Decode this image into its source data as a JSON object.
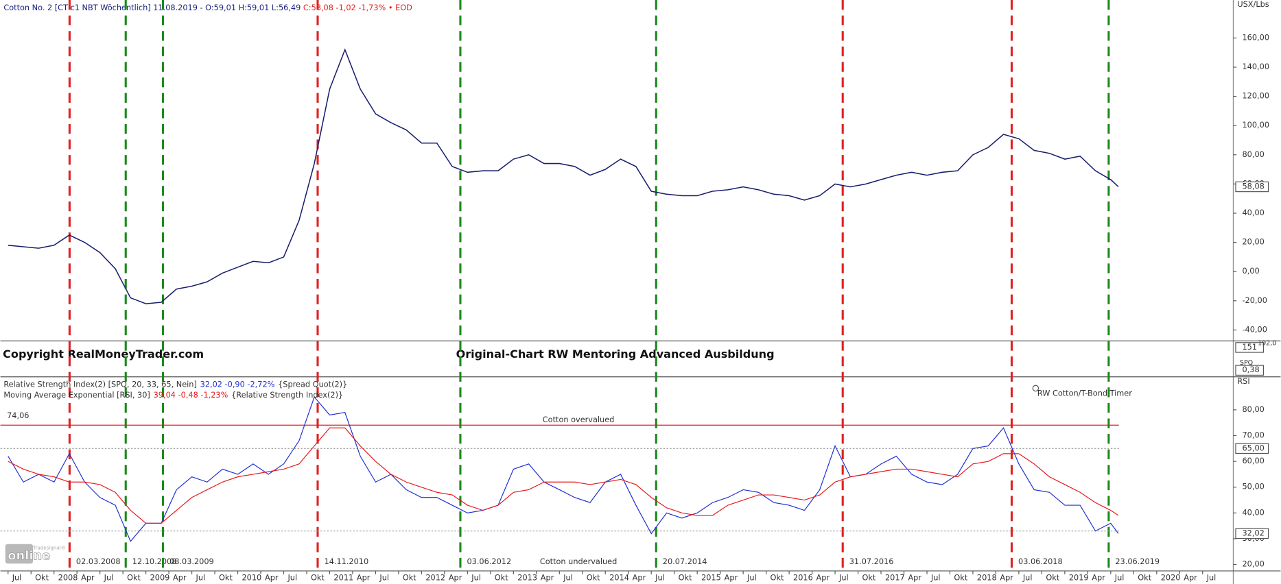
{
  "header": {
    "title": "Cotton No. 2 [CT c1 NBT Wöchentlich] 11.08.2019 -",
    "ohl": "O:59,01 H:59,01 L:56,49",
    "close": "C:58,08 -1,02 -1,73% • EOD"
  },
  "copyright": "Copyright RealMoneyTrader.com",
  "caption": "Original-Chart RW Mentoring Advanced Ausbildung",
  "side_labels": {
    "vol": "151",
    "vol2": "192,0",
    "spq": "SPQ",
    "spq_value": "0,38"
  },
  "logo": {
    "brand": "Tradesignal®",
    "name": "online"
  },
  "markers": [
    {
      "date": "02.03.2008",
      "color": "#e02020"
    },
    {
      "date": "12.10.2008",
      "color": "#1b8a1b"
    },
    {
      "date": "08.03.2009",
      "color": "#1b8a1b"
    },
    {
      "date": "14.11.2010",
      "color": "#e02020"
    },
    {
      "date": "03.06.2012",
      "color": "#1b8a1b"
    },
    {
      "date": "20.07.2014",
      "color": "#1b8a1b"
    },
    {
      "date": "31.07.2016",
      "color": "#e02020"
    },
    {
      "date": "03.06.2018",
      "color": "#e02020"
    },
    {
      "date": "23.06.2019",
      "color": "#1b8a1b"
    }
  ],
  "xlim": [
    "2007-06",
    "2020-11"
  ],
  "xticks": [
    {
      "value": "2007-07",
      "label": "Jul"
    },
    {
      "value": "2007-10",
      "label": "Okt"
    },
    {
      "value": "2008-01",
      "label": "2008"
    },
    {
      "value": "2008-04",
      "label": "Apr"
    },
    {
      "value": "2008-07",
      "label": "Jul"
    },
    {
      "value": "2008-10",
      "label": "Okt"
    },
    {
      "value": "2009-01",
      "label": "2009"
    },
    {
      "value": "2009-04",
      "label": "Apr"
    },
    {
      "value": "2009-07",
      "label": "Jul"
    },
    {
      "value": "2009-10",
      "label": "Okt"
    },
    {
      "value": "2010-01",
      "label": "2010"
    },
    {
      "value": "2010-04",
      "label": "Apr"
    },
    {
      "value": "2010-07",
      "label": "Jul"
    },
    {
      "value": "2010-10",
      "label": "Okt"
    },
    {
      "value": "2011-01",
      "label": "2011"
    },
    {
      "value": "2011-04",
      "label": "Apr"
    },
    {
      "value": "2011-07",
      "label": "Jul"
    },
    {
      "value": "2011-10",
      "label": "Okt"
    },
    {
      "value": "2012-01",
      "label": "2012"
    },
    {
      "value": "2012-04",
      "label": "Apr"
    },
    {
      "value": "2012-07",
      "label": "Jul"
    },
    {
      "value": "2012-10",
      "label": "Okt"
    },
    {
      "value": "2013-01",
      "label": "2013"
    },
    {
      "value": "2013-04",
      "label": "Apr"
    },
    {
      "value": "2013-07",
      "label": "Jul"
    },
    {
      "value": "2013-10",
      "label": "Okt"
    },
    {
      "value": "2014-01",
      "label": "2014"
    },
    {
      "value": "2014-04",
      "label": "Apr"
    },
    {
      "value": "2014-07",
      "label": "Jul"
    },
    {
      "value": "2014-10",
      "label": "Okt"
    },
    {
      "value": "2015-01",
      "label": "2015"
    },
    {
      "value": "2015-04",
      "label": "Apr"
    },
    {
      "value": "2015-07",
      "label": "Jul"
    },
    {
      "value": "2015-10",
      "label": "Okt"
    },
    {
      "value": "2016-01",
      "label": "2016"
    },
    {
      "value": "2016-04",
      "label": "Apr"
    },
    {
      "value": "2016-07",
      "label": "Jul"
    },
    {
      "value": "2016-10",
      "label": "Okt"
    },
    {
      "value": "2017-01",
      "label": "2017"
    },
    {
      "value": "2017-04",
      "label": "Apr"
    },
    {
      "value": "2017-07",
      "label": "Jul"
    },
    {
      "value": "2017-10",
      "label": "Okt"
    },
    {
      "value": "2018-01",
      "label": "2018"
    },
    {
      "value": "2018-04",
      "label": "Apr"
    },
    {
      "value": "2018-07",
      "label": "Jul"
    },
    {
      "value": "2018-10",
      "label": "Okt"
    },
    {
      "value": "2019-01",
      "label": "2019"
    },
    {
      "value": "2019-04",
      "label": "Apr"
    },
    {
      "value": "2019-07",
      "label": "Jul"
    },
    {
      "value": "2019-10",
      "label": "Okt"
    },
    {
      "value": "2020-01",
      "label": "2020"
    },
    {
      "value": "2020-04",
      "label": "Apr"
    },
    {
      "value": "2020-07",
      "label": "Jul"
    }
  ],
  "chart_data": [
    {
      "type": "line",
      "axis_label": "USX/Lbs",
      "color": "#1a1f6e",
      "x": [
        "2007-07",
        "2007-09",
        "2007-11",
        "2008-01",
        "2008-03",
        "2008-05",
        "2008-07",
        "2008-09",
        "2008-11",
        "2009-01",
        "2009-03",
        "2009-05",
        "2009-07",
        "2009-09",
        "2009-11",
        "2010-01",
        "2010-03",
        "2010-05",
        "2010-07",
        "2010-09",
        "2010-11",
        "2011-01",
        "2011-03",
        "2011-05",
        "2011-07",
        "2011-09",
        "2011-11",
        "2012-01",
        "2012-03",
        "2012-05",
        "2012-07",
        "2012-09",
        "2012-11",
        "2013-01",
        "2013-03",
        "2013-05",
        "2013-07",
        "2013-09",
        "2013-11",
        "2014-01",
        "2014-03",
        "2014-05",
        "2014-07",
        "2014-09",
        "2014-11",
        "2015-01",
        "2015-03",
        "2015-05",
        "2015-07",
        "2015-09",
        "2015-11",
        "2016-01",
        "2016-03",
        "2016-05",
        "2016-07",
        "2016-09",
        "2016-11",
        "2017-01",
        "2017-03",
        "2017-05",
        "2017-07",
        "2017-09",
        "2017-11",
        "2018-01",
        "2018-03",
        "2018-05",
        "2018-07",
        "2018-09",
        "2018-11",
        "2019-01",
        "2019-03",
        "2019-05",
        "2019-07",
        "2019-08"
      ],
      "values": [
        18,
        17,
        16,
        18,
        25,
        20,
        13,
        2,
        -18,
        -22,
        -21,
        -12,
        -10,
        -7,
        -1,
        3,
        7,
        6,
        10,
        35,
        74,
        125,
        152,
        125,
        108,
        102,
        97,
        88,
        88,
        72,
        68,
        69,
        69,
        77,
        80,
        74,
        74,
        72,
        66,
        70,
        77,
        72,
        55,
        53,
        52,
        52,
        55,
        56,
        58,
        56,
        53,
        52,
        49,
        52,
        60,
        58,
        60,
        63,
        66,
        68,
        66,
        68,
        69,
        80,
        85,
        94,
        91,
        83,
        81,
        77,
        79,
        69,
        63,
        58.08
      ],
      "last_value": {
        "value": 58.08,
        "label": "58,08"
      },
      "ylim": [
        -47.5,
        186
      ],
      "yticks": [
        {
          "value": -40,
          "label": "-40,00"
        },
        {
          "value": -20,
          "label": "-20,00"
        },
        {
          "value": 0,
          "label": "0,00"
        },
        {
          "value": 20,
          "label": "20,00"
        },
        {
          "value": 40,
          "label": "40,00"
        },
        {
          "value": 60,
          "label": "60,00"
        },
        {
          "value": 80,
          "label": "80,00"
        },
        {
          "value": 100,
          "label": "100,00"
        },
        {
          "value": 120,
          "label": "120,00"
        },
        {
          "value": 140,
          "label": "140,00"
        },
        {
          "value": 160,
          "label": "160,00"
        }
      ]
    },
    {
      "type": "line",
      "axis_label": "RSI",
      "annotation": "RW Cotton/T-Bond Timer",
      "x": [
        "2007-07",
        "2007-09",
        "2007-11",
        "2008-01",
        "2008-03",
        "2008-05",
        "2008-07",
        "2008-09",
        "2008-11",
        "2009-01",
        "2009-03",
        "2009-05",
        "2009-07",
        "2009-09",
        "2009-11",
        "2010-01",
        "2010-03",
        "2010-05",
        "2010-07",
        "2010-09",
        "2010-11",
        "2011-01",
        "2011-03",
        "2011-05",
        "2011-07",
        "2011-09",
        "2011-11",
        "2012-01",
        "2012-03",
        "2012-05",
        "2012-07",
        "2012-09",
        "2012-11",
        "2013-01",
        "2013-03",
        "2013-05",
        "2013-07",
        "2013-09",
        "2013-11",
        "2014-01",
        "2014-03",
        "2014-05",
        "2014-07",
        "2014-09",
        "2014-11",
        "2015-01",
        "2015-03",
        "2015-05",
        "2015-07",
        "2015-09",
        "2015-11",
        "2016-01",
        "2016-03",
        "2016-05",
        "2016-07",
        "2016-09",
        "2016-11",
        "2017-01",
        "2017-03",
        "2017-05",
        "2017-07",
        "2017-09",
        "2017-11",
        "2018-01",
        "2018-03",
        "2018-05",
        "2018-07",
        "2018-09",
        "2018-11",
        "2019-01",
        "2019-03",
        "2019-05",
        "2019-07",
        "2019-08"
      ],
      "series": [
        {
          "name": "Relative Strength Index(2) [SPQ, 20, 33, 65, Nein]",
          "legend_value": "32,02 -0,90 -2,72%",
          "legend_source": "{Spread Quot(2)}",
          "color": "#1f2fd6",
          "values": [
            62,
            52,
            55,
            52,
            63,
            52,
            46,
            43,
            29,
            36,
            36,
            49,
            54,
            52,
            57,
            55,
            59,
            55,
            59,
            68,
            85,
            78,
            79,
            62,
            52,
            55,
            49,
            46,
            46,
            43,
            40,
            41,
            43,
            57,
            59,
            52,
            49,
            46,
            44,
            52,
            55,
            43,
            32,
            40,
            38,
            40,
            44,
            46,
            49,
            48,
            44,
            43,
            41,
            49,
            66,
            54,
            55,
            59,
            62,
            55,
            52,
            51,
            55,
            65,
            66,
            73,
            59,
            49,
            48,
            43,
            43,
            33,
            36,
            32.02
          ]
        },
        {
          "name": "Moving Average Exponential [RSI, 30]",
          "legend_value": "39,04 -0,48 -1,23%",
          "legend_source": "{Relative Strength Index(2)}",
          "color": "#e8191c",
          "values": [
            60,
            57,
            55,
            54,
            52,
            52,
            51,
            48,
            41,
            36,
            36,
            41,
            46,
            49,
            52,
            54,
            55,
            56,
            57,
            59,
            66,
            73,
            73,
            66,
            60,
            55,
            52,
            50,
            48,
            47,
            43,
            41,
            43,
            48,
            49,
            52,
            52,
            52,
            51,
            52,
            53,
            51,
            46,
            42,
            40,
            39,
            39,
            43,
            45,
            47,
            47,
            46,
            45,
            47,
            52,
            54,
            55,
            56,
            57,
            57,
            56,
            55,
            54,
            59,
            60,
            63,
            63,
            59,
            54,
            51,
            48,
            44,
            41,
            39.04
          ]
        }
      ],
      "last_value": {
        "value": 32.02,
        "label": "32,02"
      },
      "levels": [
        {
          "value": 74.06,
          "label": "74,06",
          "text": "Cotton overvalued",
          "color": "#e02020"
        },
        {
          "value": 65,
          "label": "65,00",
          "color": "#999999"
        },
        {
          "value": 33,
          "text": "Cotton undervalued",
          "color": "#999999"
        }
      ],
      "ylim": [
        17.5,
        92.8
      ],
      "yticks": [
        {
          "value": 20,
          "label": "20,00"
        },
        {
          "value": 30,
          "label": "30,00"
        },
        {
          "value": 40,
          "label": "40,00"
        },
        {
          "value": 50,
          "label": "50,00"
        },
        {
          "value": 60,
          "label": "60,00"
        },
        {
          "value": 70,
          "label": "70,00"
        },
        {
          "value": 80,
          "label": "80,00"
        }
      ]
    }
  ]
}
